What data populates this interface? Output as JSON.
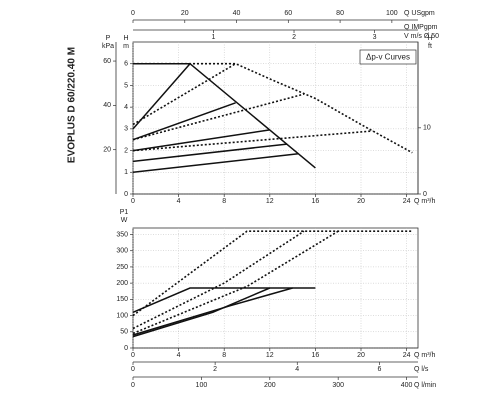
{
  "title_vertical": "EVOPLUS D 60/220.40 M",
  "chart_data": [
    {
      "type": "line",
      "legend_text": "Δp-v Curves",
      "y_label": "H",
      "y_unit": "m",
      "ylim": [
        0,
        7
      ],
      "yticks": [
        0,
        1,
        2,
        3,
        4,
        5,
        6
      ],
      "kpa_label": "P",
      "kpa_unit": "kPa",
      "kpa_lim": [
        0,
        68.6
      ],
      "kpa_ticks": [
        20,
        40,
        60
      ],
      "ft_label": "H",
      "ft_unit": "ft",
      "ft_lim": [
        0,
        22.97
      ],
      "ft_ticks": [
        0,
        10
      ],
      "x_label": "Q m³/h",
      "xlim": [
        0,
        25
      ],
      "xticks": [
        0,
        4,
        8,
        12,
        16,
        20,
        24
      ],
      "usgpm_label": "Q USgpm",
      "usgpm_lim": [
        0,
        110.1
      ],
      "usgpm_ticks": [
        0,
        20,
        40,
        60,
        80,
        100
      ],
      "impgpm_label": "Q IMPgpm",
      "v_label": "V m/s Ø 50",
      "v_lim": [
        0,
        3.54
      ],
      "v_ticks": [
        1,
        2,
        3
      ],
      "grid": true,
      "series": [
        {
          "dash": "dotted",
          "x": [
            0,
            9,
            12,
            16,
            20,
            24.5
          ],
          "values": [
            6,
            6,
            5.3,
            4.4,
            3.2,
            1.9
          ]
        },
        {
          "dash": "dotted",
          "x": [
            0,
            9
          ],
          "values": [
            3.2,
            6
          ]
        },
        {
          "dash": "dotted",
          "x": [
            0,
            15
          ],
          "values": [
            2.5,
            4.6
          ]
        },
        {
          "dash": "dotted",
          "x": [
            0,
            21
          ],
          "values": [
            2,
            2.9
          ]
        },
        {
          "dash": "solid",
          "x": [
            0,
            5,
            16
          ],
          "values": [
            6,
            6,
            1.2
          ]
        },
        {
          "dash": "solid",
          "x": [
            0,
            5
          ],
          "values": [
            3,
            6
          ]
        },
        {
          "dash": "solid",
          "x": [
            0,
            9
          ],
          "values": [
            2.5,
            4.2
          ]
        },
        {
          "dash": "solid",
          "x": [
            0,
            12
          ],
          "values": [
            2,
            2.95
          ]
        },
        {
          "dash": "solid",
          "x": [
            0,
            13.5
          ],
          "values": [
            1.5,
            2.3
          ]
        },
        {
          "dash": "solid",
          "x": [
            0,
            14.5
          ],
          "values": [
            1,
            1.85
          ]
        }
      ]
    },
    {
      "type": "line",
      "y_label": "P1",
      "y_unit": "W",
      "ylim": [
        0,
        370
      ],
      "yticks": [
        0,
        50,
        100,
        150,
        200,
        250,
        300,
        350
      ],
      "x_label": "Q m³/h",
      "xlim": [
        0,
        25
      ],
      "xticks": [
        0,
        4,
        8,
        12,
        16,
        20,
        24
      ],
      "ls_label": "Q l/s",
      "ls_lim": [
        0,
        6.94
      ],
      "ls_ticks": [
        0,
        2,
        4,
        6
      ],
      "lmin_label": "Q l/min",
      "lmin_lim": [
        0,
        416.7
      ],
      "lmin_ticks": [
        0,
        100,
        200,
        300,
        400
      ],
      "grid": true,
      "series": [
        {
          "dash": "dotted",
          "x": [
            0,
            5,
            10,
            24.5
          ],
          "values": [
            100,
            230,
            360,
            360
          ]
        },
        {
          "dash": "dotted",
          "x": [
            0,
            8,
            15
          ],
          "values": [
            60,
            200,
            360
          ]
        },
        {
          "dash": "dotted",
          "x": [
            0,
            10,
            18
          ],
          "values": [
            45,
            190,
            360
          ]
        },
        {
          "dash": "solid",
          "x": [
            0,
            5,
            16
          ],
          "values": [
            110,
            185,
            185
          ]
        },
        {
          "dash": "solid",
          "x": [
            0,
            8.5,
            14
          ],
          "values": [
            40,
            130,
            185
          ]
        },
        {
          "dash": "solid",
          "x": [
            0,
            7,
            12
          ],
          "values": [
            35,
            110,
            185
          ]
        }
      ]
    }
  ]
}
